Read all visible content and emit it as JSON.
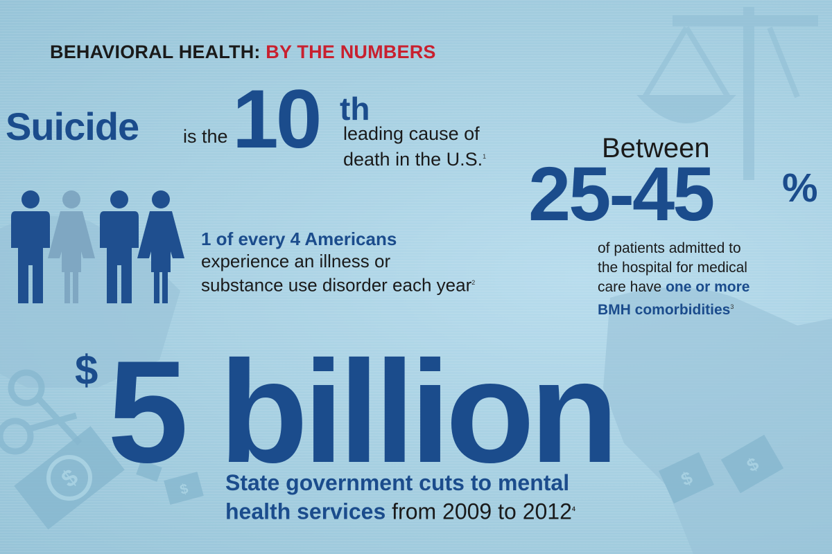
{
  "header": {
    "title_part1": "BEHAVIORAL HEALTH:",
    "title_part2": "BY THE NUMBERS"
  },
  "suicide_stat": {
    "subject": "Suicide",
    "connector": "is the",
    "rank_number": "10",
    "rank_suffix": "th",
    "line1": "leading cause of",
    "line2": "death in the U.S.",
    "footnote": "1"
  },
  "americans_stat": {
    "headline": "1 of every 4 Americans",
    "line1": "experience an illness or",
    "line2": "substance use disorder each year",
    "footnote": "2",
    "figures": [
      "man",
      "woman",
      "man",
      "woman"
    ],
    "highlighted_count": 1
  },
  "comorbidity_stat": {
    "lead": "Between",
    "range": "25-45",
    "percent_sign": "%",
    "line1": "of patients admitted to",
    "line2": "the hospital for medical",
    "line3_plain": "care have",
    "line3_highlight": "one or more",
    "line4_highlight": "BMH comorbidities",
    "footnote": "3"
  },
  "funding_stat": {
    "currency": "$",
    "amount": "5 billion",
    "line1": "State government cuts to mental",
    "line2_bold": "health services",
    "line2_plain": "from 2009 to 2012",
    "footnote": "4"
  },
  "colors": {
    "background": "#a9d2e3",
    "brand_blue": "#1b4c8c",
    "accent_red": "#c8202f",
    "text_dark": "#1a1a1a",
    "figure_dark": "#1f4f8f",
    "figure_light": "#7fa7c2"
  },
  "icons": [
    "scales-of-justice-icon",
    "dollar-bill-icon",
    "scissors-icon",
    "person-icon"
  ]
}
